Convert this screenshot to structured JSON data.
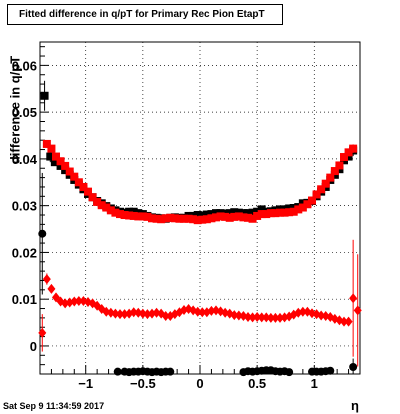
{
  "title": "Fitted difference in q/pT for Primary Rec Pion EtapT",
  "timestamp": "Sat Sep  9 11:34:59 2017",
  "chart_data": {
    "type": "scatter",
    "title": "Fitted difference in q/pT for Primary Rec Pion EtapT",
    "xlabel": "η",
    "ylabel": "difference in q/pT",
    "xlim": [
      -1.4,
      1.4
    ],
    "ylim": [
      -0.006,
      0.065
    ],
    "grid": true,
    "x_ticks": [
      {
        "value": -1,
        "label": "−1"
      },
      {
        "value": -0.5,
        "label": "−0.5"
      },
      {
        "value": 0,
        "label": "0"
      },
      {
        "value": 0.5,
        "label": "0.5"
      },
      {
        "value": 1,
        "label": "1"
      }
    ],
    "y_ticks": [
      {
        "value": 0,
        "label": "0"
      },
      {
        "value": 0.01,
        "label": "0.01"
      },
      {
        "value": 0.02,
        "label": "0.02"
      },
      {
        "value": 0.03,
        "label": "0.03"
      },
      {
        "value": 0.04,
        "label": "0.04"
      },
      {
        "value": 0.05,
        "label": "0.05"
      },
      {
        "value": 0.06,
        "label": "0.06"
      }
    ],
    "series": [
      {
        "color": "#000000",
        "marker": "square",
        "x": [
          -1.36,
          -1.31,
          -1.27,
          -1.22,
          -1.18,
          -1.14,
          -1.1,
          -1.06,
          -1.02,
          -0.98,
          -0.94,
          -0.9,
          -0.86,
          -0.82,
          -0.78,
          -0.74,
          -0.7,
          -0.66,
          -0.62,
          -0.58,
          -0.54,
          -0.5,
          -0.46,
          -0.42,
          -0.38,
          -0.34,
          -0.3,
          -0.26,
          -0.22,
          -0.18,
          -0.14,
          -0.1,
          -0.06,
          -0.02,
          0.02,
          0.06,
          0.1,
          0.14,
          0.18,
          0.22,
          0.26,
          0.3,
          0.34,
          0.38,
          0.42,
          0.46,
          0.5,
          0.54,
          0.58,
          0.62,
          0.66,
          0.7,
          0.74,
          0.78,
          0.82,
          0.86,
          0.9,
          0.94,
          0.98,
          1.02,
          1.06,
          1.1,
          1.14,
          1.18,
          1.22,
          1.26,
          1.3,
          1.34
        ],
        "y": [
          0.0535,
          0.0405,
          0.0393,
          0.0385,
          0.0376,
          0.0366,
          0.0355,
          0.0345,
          0.0335,
          0.0325,
          0.0318,
          0.031,
          0.0305,
          0.0299,
          0.0294,
          0.029,
          0.0287,
          0.0285,
          0.0287,
          0.0287,
          0.0284,
          0.0282,
          0.0278,
          0.0275,
          0.0274,
          0.0273,
          0.0272,
          0.0274,
          0.0275,
          0.0274,
          0.0274,
          0.0278,
          0.0278,
          0.028,
          0.0279,
          0.0281,
          0.0282,
          0.0284,
          0.0284,
          0.0283,
          0.0284,
          0.0286,
          0.0285,
          0.0284,
          0.0284,
          0.0285,
          0.0287,
          0.0292,
          0.0287,
          0.0288,
          0.029,
          0.0292,
          0.0292,
          0.0294,
          0.0295,
          0.0297,
          0.0305,
          0.0306,
          0.031,
          0.032,
          0.033,
          0.034,
          0.0355,
          0.0366,
          0.0378,
          0.0397,
          0.0405,
          0.0418
        ],
        "err": [
          0.0032,
          0.0012,
          0.0004,
          0.0004,
          0.0004,
          0.0004,
          0.0004,
          0.0004,
          0.0004,
          0.0004,
          0.0004,
          0.0004,
          0.0004,
          0.0004,
          0.0004,
          0.0004,
          0.0004,
          0.0004,
          0.0004,
          0.0004,
          0.0004,
          0.0004,
          0.0004,
          0.0004,
          0.0004,
          0.0004,
          0.0004,
          0.0004,
          0.0004,
          0.0004,
          0.0004,
          0.0004,
          0.0004,
          0.0004,
          0.0004,
          0.0004,
          0.0004,
          0.0004,
          0.0004,
          0.0004,
          0.0004,
          0.0004,
          0.0004,
          0.0004,
          0.0004,
          0.0004,
          0.0004,
          0.0004,
          0.0004,
          0.0004,
          0.0004,
          0.0004,
          0.0004,
          0.0004,
          0.0004,
          0.0004,
          0.0004,
          0.0004,
          0.0004,
          0.0004,
          0.0004,
          0.0004,
          0.0004,
          0.0004,
          0.0004,
          0.0004,
          0.0004,
          0.0012
        ]
      },
      {
        "color": "#ff0000",
        "marker": "square",
        "x": [
          -1.34,
          -1.3,
          -1.26,
          -1.22,
          -1.18,
          -1.14,
          -1.1,
          -1.06,
          -1.02,
          -0.98,
          -0.94,
          -0.9,
          -0.86,
          -0.82,
          -0.78,
          -0.74,
          -0.7,
          -0.66,
          -0.62,
          -0.58,
          -0.54,
          -0.5,
          -0.46,
          -0.42,
          -0.38,
          -0.34,
          -0.3,
          -0.26,
          -0.22,
          -0.18,
          -0.14,
          -0.1,
          -0.06,
          -0.02,
          0.02,
          0.06,
          0.1,
          0.14,
          0.18,
          0.22,
          0.26,
          0.3,
          0.34,
          0.38,
          0.42,
          0.46,
          0.5,
          0.54,
          0.58,
          0.62,
          0.66,
          0.7,
          0.74,
          0.78,
          0.82,
          0.86,
          0.9,
          0.94,
          0.98,
          1.02,
          1.06,
          1.1,
          1.14,
          1.18,
          1.22,
          1.26,
          1.3,
          1.34
        ],
        "y": [
          0.0432,
          0.0422,
          0.0405,
          0.0395,
          0.0385,
          0.0373,
          0.0362,
          0.035,
          0.034,
          0.033,
          0.0318,
          0.0308,
          0.0301,
          0.0296,
          0.029,
          0.0285,
          0.0282,
          0.028,
          0.0279,
          0.0278,
          0.0277,
          0.0277,
          0.0276,
          0.0273,
          0.0272,
          0.0271,
          0.0273,
          0.0274,
          0.0273,
          0.0272,
          0.0272,
          0.0272,
          0.0271,
          0.0269,
          0.027,
          0.0271,
          0.0273,
          0.0275,
          0.0277,
          0.0276,
          0.0274,
          0.0276,
          0.0277,
          0.0275,
          0.0274,
          0.0272,
          0.0278,
          0.0282,
          0.0282,
          0.0284,
          0.0284,
          0.0285,
          0.0285,
          0.0286,
          0.0287,
          0.0292,
          0.0296,
          0.0303,
          0.0311,
          0.0324,
          0.0335,
          0.0347,
          0.036,
          0.0374,
          0.0386,
          0.0404,
          0.0414,
          0.0422
        ],
        "err": [
          0.0008,
          0.0004,
          0.0004,
          0.0004,
          0.0004,
          0.0004,
          0.0004,
          0.0004,
          0.0004,
          0.0004,
          0.0004,
          0.0004,
          0.0004,
          0.0004,
          0.0004,
          0.0004,
          0.0004,
          0.0004,
          0.0004,
          0.0004,
          0.0004,
          0.0004,
          0.0004,
          0.0004,
          0.0004,
          0.0004,
          0.0004,
          0.0004,
          0.0004,
          0.0004,
          0.0004,
          0.0004,
          0.0004,
          0.0004,
          0.0004,
          0.0004,
          0.0004,
          0.0004,
          0.0004,
          0.0004,
          0.0004,
          0.0004,
          0.0004,
          0.0004,
          0.0004,
          0.0004,
          0.0004,
          0.0004,
          0.0004,
          0.0004,
          0.0004,
          0.0004,
          0.0004,
          0.0004,
          0.0004,
          0.0004,
          0.0004,
          0.0004,
          0.0004,
          0.0004,
          0.0004,
          0.0004,
          0.0004,
          0.0004,
          0.0004,
          0.0004,
          0.0004,
          0.0009
        ]
      },
      {
        "color": "#000000",
        "marker": "circle",
        "x": [
          -1.38,
          -0.72,
          -0.66,
          -0.62,
          -0.58,
          -0.54,
          -0.5,
          -0.46,
          -0.42,
          -0.38,
          -0.34,
          -0.3,
          -0.26,
          0.38,
          0.42,
          0.46,
          0.5,
          0.54,
          0.58,
          0.62,
          0.66,
          0.7,
          0.74,
          0.78,
          0.98,
          1.02,
          1.06,
          1.1,
          1.14,
          1.34
        ],
        "y": [
          0.024,
          -0.0055,
          -0.0055,
          -0.0056,
          -0.0055,
          -0.0055,
          -0.0054,
          -0.0055,
          -0.0056,
          -0.0055,
          -0.0056,
          -0.0055,
          -0.0055,
          -0.0056,
          -0.0054,
          -0.0055,
          -0.0054,
          -0.0053,
          -0.0052,
          -0.0052,
          -0.0054,
          -0.0055,
          -0.0054,
          -0.0056,
          -0.0055,
          -0.0055,
          -0.0055,
          -0.0054,
          -0.0053,
          -0.0045
        ],
        "err": [
          0.013,
          0.0005,
          0.0005,
          0.0005,
          0.0005,
          0.0005,
          0.0005,
          0.0005,
          0.0005,
          0.0005,
          0.0005,
          0.0005,
          0.0005,
          0.0005,
          0.0005,
          0.0005,
          0.0005,
          0.0005,
          0.0005,
          0.0005,
          0.0005,
          0.0005,
          0.0005,
          0.0005,
          0.0005,
          0.0005,
          0.0005,
          0.0005,
          0.0005,
          0.0018
        ]
      },
      {
        "color": "#ff0000",
        "marker": "diamond",
        "x": [
          -1.38,
          -1.34,
          -1.3,
          -1.26,
          -1.22,
          -1.18,
          -1.14,
          -1.1,
          -1.06,
          -1.02,
          -0.98,
          -0.94,
          -0.9,
          -0.86,
          -0.82,
          -0.78,
          -0.74,
          -0.7,
          -0.66,
          -0.62,
          -0.58,
          -0.54,
          -0.5,
          -0.46,
          -0.42,
          -0.38,
          -0.34,
          -0.3,
          -0.26,
          -0.22,
          -0.18,
          -0.14,
          -0.1,
          -0.06,
          -0.02,
          0.02,
          0.06,
          0.1,
          0.14,
          0.18,
          0.22,
          0.26,
          0.3,
          0.34,
          0.38,
          0.42,
          0.46,
          0.5,
          0.54,
          0.58,
          0.62,
          0.66,
          0.7,
          0.74,
          0.78,
          0.82,
          0.86,
          0.9,
          0.94,
          0.98,
          1.02,
          1.06,
          1.1,
          1.14,
          1.18,
          1.22,
          1.26,
          1.3,
          1.34,
          1.38
        ],
        "y": [
          0.0028,
          0.0143,
          0.0122,
          0.0104,
          0.0095,
          0.0091,
          0.0093,
          0.0095,
          0.0096,
          0.0096,
          0.0094,
          0.0091,
          0.0086,
          0.0079,
          0.0073,
          0.0071,
          0.0069,
          0.0068,
          0.0068,
          0.0069,
          0.0072,
          0.0071,
          0.0069,
          0.0068,
          0.0069,
          0.0071,
          0.0069,
          0.0064,
          0.0064,
          0.0068,
          0.0072,
          0.0077,
          0.0079,
          0.0076,
          0.0073,
          0.0072,
          0.0072,
          0.0075,
          0.0076,
          0.0074,
          0.0071,
          0.0069,
          0.0066,
          0.0065,
          0.0064,
          0.0062,
          0.0061,
          0.0062,
          0.0061,
          0.0061,
          0.006,
          0.006,
          0.006,
          0.0061,
          0.0063,
          0.0067,
          0.0071,
          0.0073,
          0.0073,
          0.007,
          0.0068,
          0.0065,
          0.0064,
          0.0062,
          0.0058,
          0.0055,
          0.0052,
          0.0052,
          0.0102,
          0.0076
        ],
        "err": [
          0.004,
          0.0012,
          0.0005,
          0.0004,
          0.0004,
          0.0004,
          0.0004,
          0.0004,
          0.0004,
          0.0004,
          0.0004,
          0.0004,
          0.0004,
          0.0004,
          0.0004,
          0.0004,
          0.0004,
          0.0004,
          0.0004,
          0.0004,
          0.0004,
          0.0004,
          0.0004,
          0.0004,
          0.0004,
          0.0004,
          0.0004,
          0.0004,
          0.0004,
          0.0004,
          0.0004,
          0.0004,
          0.0004,
          0.0004,
          0.0004,
          0.0004,
          0.0004,
          0.0004,
          0.0004,
          0.0004,
          0.0004,
          0.0004,
          0.0004,
          0.0004,
          0.0004,
          0.0004,
          0.0004,
          0.0004,
          0.0004,
          0.0004,
          0.0004,
          0.0004,
          0.0004,
          0.0004,
          0.0004,
          0.0004,
          0.0004,
          0.0004,
          0.0004,
          0.0004,
          0.0004,
          0.0004,
          0.0004,
          0.0004,
          0.0004,
          0.0004,
          0.0004,
          0.0004,
          0.0125,
          0.012
        ]
      }
    ]
  }
}
